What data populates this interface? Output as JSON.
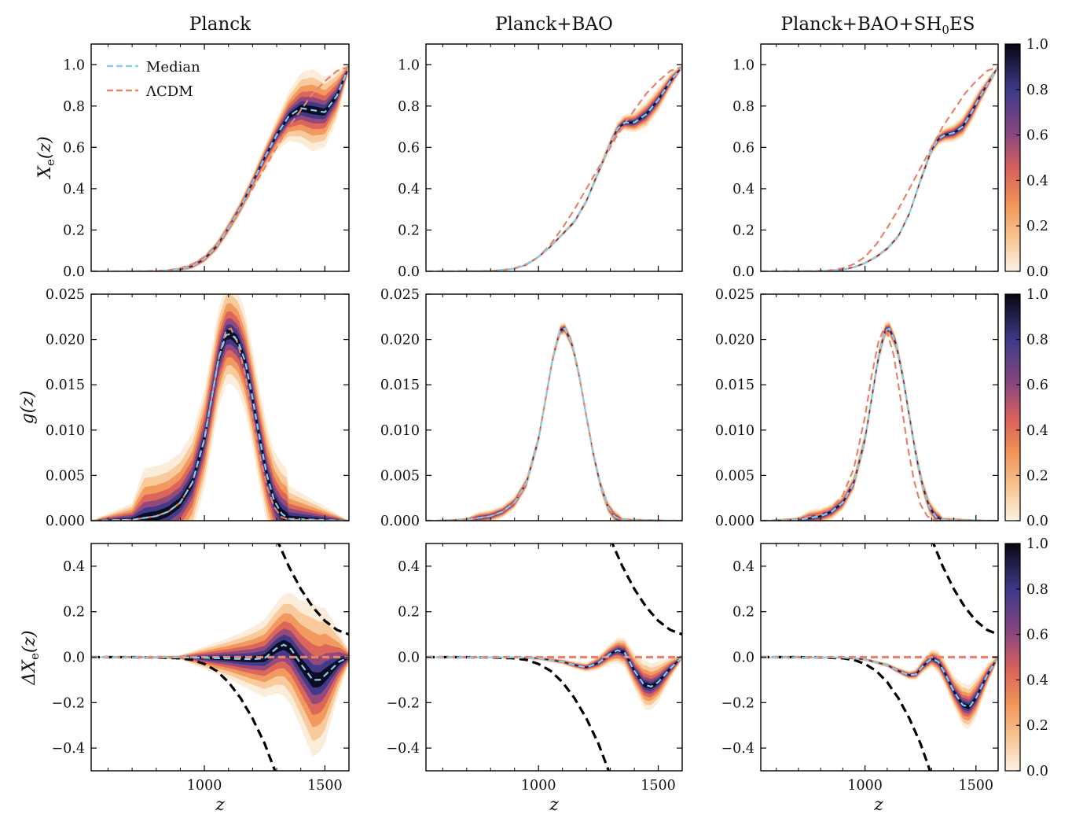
{
  "chart_data": {
    "type": "line",
    "description_type": "3x3 grid of posterior density bands with median and reference curves",
    "columns": [
      {
        "title": "Planck"
      },
      {
        "title": "Planck+BAO"
      },
      {
        "title": "Planck+BAO+SH",
        "title_sub": "0",
        "title_tail": "ES"
      }
    ],
    "rows": [
      {
        "ylabel": "X_e(z)",
        "ylabel_main": "X",
        "ylabel_sub": "e",
        "ylabel_tail": "(z)",
        "ylim": [
          0.0,
          1.1
        ],
        "yticks": [
          0.0,
          0.2,
          0.4,
          0.6,
          0.8,
          1.0
        ],
        "ytick_labels": [
          "0.0",
          "0.2",
          "0.4",
          "0.6",
          "0.8",
          "1.0"
        ]
      },
      {
        "ylabel": "g(z)",
        "ylabel_main": "g",
        "ylabel_sub": "",
        "ylabel_tail": "(z)",
        "ylim": [
          0.0,
          0.025
        ],
        "yticks": [
          0.0,
          0.005,
          0.01,
          0.015,
          0.02,
          0.025
        ],
        "ytick_labels": [
          "0.000",
          "0.005",
          "0.010",
          "0.015",
          "0.020",
          "0.025"
        ]
      },
      {
        "ylabel": "ΔX_e(z)",
        "ylabel_main": "ΔX",
        "ylabel_sub": "e",
        "ylabel_tail": "(z)",
        "ylim": [
          -0.5,
          0.5
        ],
        "yticks": [
          -0.4,
          -0.2,
          0.0,
          0.2,
          0.4
        ],
        "ytick_labels": [
          "−0.4",
          "−0.2",
          "0.0",
          "0.2",
          "0.4"
        ]
      }
    ],
    "x": {
      "label": "z",
      "xlim": [
        530,
        1600
      ],
      "major_ticks": [
        1000,
        1500
      ],
      "major_tick_labels": [
        "1000",
        "1500"
      ],
      "minor_ticks": [
        600,
        700,
        800,
        900,
        1100,
        1200,
        1300,
        1400
      ]
    },
    "legend": {
      "location": "top-left",
      "entries": [
        {
          "label": "Median",
          "color": "#87ceeb",
          "style": "dashed"
        },
        {
          "label": "ΛCDM",
          "color": "#e8826a",
          "style": "dashed"
        }
      ]
    },
    "colorbar": {
      "range": [
        0.0,
        1.0
      ],
      "ticks": [
        0.0,
        0.2,
        0.4,
        0.6,
        0.8,
        1.0
      ],
      "tick_labels": [
        "0.0",
        "0.2",
        "0.4",
        "0.6",
        "0.8",
        "1.0"
      ],
      "colors": [
        "#fbf1e3",
        "#f7a463",
        "#df6a55",
        "#8c467e",
        "#433d88",
        "#070712"
      ]
    },
    "colors": {
      "median": "#87ceeb",
      "lcdm": "#e8826a",
      "bounds": "#000000",
      "axis": "#000000"
    },
    "series": {
      "xe_lcdm": {
        "z": [
          530,
          700,
          800,
          850,
          900,
          950,
          1000,
          1050,
          1100,
          1150,
          1200,
          1250,
          1300,
          1350,
          1400,
          1450,
          1500,
          1550,
          1600
        ],
        "v": [
          0.0,
          0.0,
          0.002,
          0.006,
          0.015,
          0.035,
          0.07,
          0.13,
          0.21,
          0.3,
          0.4,
          0.5,
          0.6,
          0.7,
          0.78,
          0.86,
          0.92,
          0.97,
          0.99
        ]
      },
      "g_lcdm_a": {
        "z": [
          530,
          700,
          800,
          850,
          900,
          950,
          1000,
          1030,
          1060,
          1090,
          1110,
          1140,
          1170,
          1200,
          1230,
          1260,
          1290,
          1320,
          1350,
          1600
        ],
        "v": [
          0.0,
          0.0001,
          0.0005,
          0.001,
          0.002,
          0.0042,
          0.009,
          0.0135,
          0.018,
          0.021,
          0.0212,
          0.0195,
          0.016,
          0.0115,
          0.0072,
          0.0038,
          0.0015,
          0.0004,
          0.0001,
          0.0
        ]
      },
      "g_lcdm_c": {
        "z": [
          530,
          700,
          800,
          850,
          900,
          950,
          1000,
          1030,
          1060,
          1085,
          1100,
          1130,
          1160,
          1190,
          1220,
          1250,
          1280,
          1310,
          1600
        ],
        "v": [
          0.0,
          0.0002,
          0.0007,
          0.0014,
          0.0028,
          0.0058,
          0.0115,
          0.016,
          0.0197,
          0.0212,
          0.0208,
          0.0182,
          0.0135,
          0.0085,
          0.0045,
          0.0018,
          0.0005,
          0.0001,
          0.0
        ]
      },
      "bound_upper": {
        "z": [
          1300,
          1350,
          1400,
          1450,
          1500,
          1550,
          1600
        ],
        "v": [
          0.52,
          0.4,
          0.3,
          0.22,
          0.16,
          0.12,
          0.1
        ]
      },
      "bound_lower": {
        "z": [
          530,
          700,
          800,
          900,
          950,
          1000,
          1050,
          1100,
          1150,
          1200,
          1250,
          1300
        ],
        "v": [
          0.0,
          0.0,
          -0.001,
          -0.005,
          -0.012,
          -0.03,
          -0.06,
          -0.11,
          -0.18,
          -0.27,
          -0.38,
          -0.52
        ]
      },
      "planck": {
        "xe_median": {
          "z": [
            530,
            800,
            900,
            950,
            1000,
            1050,
            1100,
            1150,
            1200,
            1250,
            1300,
            1350,
            1400,
            1450,
            1500,
            1550,
            1600
          ],
          "v": [
            0.0,
            0.0,
            0.01,
            0.025,
            0.06,
            0.12,
            0.21,
            0.31,
            0.43,
            0.55,
            0.66,
            0.75,
            0.79,
            0.78,
            0.77,
            0.85,
            0.99
          ]
        },
        "xe_spread": {
          "z": [
            530,
            800,
            900,
            1000,
            1100,
            1200,
            1250,
            1300,
            1350,
            1400,
            1450,
            1500,
            1550,
            1600
          ],
          "v": [
            0.0,
            0.003,
            0.01,
            0.02,
            0.03,
            0.04,
            0.06,
            0.08,
            0.12,
            0.17,
            0.2,
            0.17,
            0.12,
            0.02
          ]
        },
        "g_median": {
          "z": [
            530,
            700,
            800,
            850,
            900,
            950,
            1000,
            1030,
            1060,
            1090,
            1110,
            1140,
            1170,
            1200,
            1230,
            1260,
            1290,
            1320,
            1350,
            1600
          ],
          "v": [
            0.0,
            0.0001,
            0.0005,
            0.001,
            0.002,
            0.0042,
            0.009,
            0.0135,
            0.018,
            0.0205,
            0.0206,
            0.0198,
            0.0175,
            0.0135,
            0.009,
            0.005,
            0.0022,
            0.0008,
            0.0002,
            0.0
          ]
        },
        "g_spread": 0.0055,
        "dx_median": {
          "z": [
            530,
            900,
            1000,
            1100,
            1150,
            1200,
            1250,
            1300,
            1330,
            1360,
            1400,
            1450,
            1480,
            1520,
            1560,
            1600
          ],
          "v": [
            0.0,
            -0.001,
            -0.003,
            -0.006,
            -0.008,
            -0.009,
            -0.005,
            0.04,
            0.055,
            0.035,
            -0.03,
            -0.1,
            -0.1,
            -0.06,
            -0.02,
            0.0
          ]
        },
        "dx_spread": {
          "z": [
            530,
            900,
            1000,
            1100,
            1200,
            1300,
            1400,
            1450,
            1500,
            1550,
            1600
          ],
          "v": [
            0.0,
            0.01,
            0.05,
            0.09,
            0.14,
            0.2,
            0.28,
            0.34,
            0.3,
            0.16,
            0.03
          ]
        }
      },
      "bao": {
        "xe_median": {
          "z": [
            530,
            800,
            900,
            950,
            1000,
            1050,
            1100,
            1150,
            1200,
            1250,
            1300,
            1330,
            1360,
            1400,
            1450,
            1500,
            1550,
            1600
          ],
          "v": [
            0.0,
            0.002,
            0.013,
            0.032,
            0.07,
            0.12,
            0.18,
            0.24,
            0.34,
            0.48,
            0.62,
            0.69,
            0.72,
            0.72,
            0.76,
            0.83,
            0.92,
            0.99
          ]
        },
        "xe_spread": {
          "z": [
            530,
            900,
            1100,
            1200,
            1300,
            1400,
            1450,
            1500,
            1550,
            1600
          ],
          "v": [
            0.0,
            0.005,
            0.01,
            0.015,
            0.025,
            0.05,
            0.065,
            0.06,
            0.04,
            0.01
          ]
        },
        "g_median": "g_lcdm_a",
        "g_spread": 0.0007,
        "dx_median": {
          "z": [
            530,
            900,
            1000,
            1100,
            1150,
            1200,
            1250,
            1300,
            1330,
            1360,
            1400,
            1440,
            1470,
            1500,
            1550,
            1600
          ],
          "v": [
            0.0,
            -0.001,
            -0.005,
            -0.02,
            -0.035,
            -0.045,
            -0.025,
            0.015,
            0.03,
            0.02,
            -0.06,
            -0.12,
            -0.13,
            -0.11,
            -0.05,
            0.0
          ]
        },
        "dx_spread": {
          "z": [
            530,
            900,
            1100,
            1200,
            1300,
            1400,
            1450,
            1500,
            1550,
            1600
          ],
          "v": [
            0.0,
            0.005,
            0.012,
            0.02,
            0.045,
            0.08,
            0.11,
            0.09,
            0.05,
            0.01
          ]
        }
      },
      "shoes": {
        "xe_median": {
          "z": [
            530,
            800,
            900,
            950,
            1000,
            1050,
            1100,
            1150,
            1200,
            1250,
            1300,
            1330,
            1360,
            1400,
            1440,
            1480,
            1520,
            1560,
            1600
          ],
          "v": [
            0.0,
            0.001,
            0.008,
            0.02,
            0.04,
            0.07,
            0.11,
            0.17,
            0.28,
            0.44,
            0.59,
            0.64,
            0.66,
            0.67,
            0.7,
            0.77,
            0.85,
            0.92,
            0.99
          ]
        },
        "xe_spread": {
          "z": [
            530,
            900,
            1100,
            1200,
            1300,
            1400,
            1450,
            1500,
            1550,
            1600
          ],
          "v": [
            0.0,
            0.005,
            0.01,
            0.015,
            0.025,
            0.045,
            0.055,
            0.05,
            0.03,
            0.01
          ]
        },
        "g_median": "g_lcdm_a",
        "g_spread": 0.0009,
        "dx_median": {
          "z": [
            530,
            900,
            1000,
            1100,
            1150,
            1200,
            1230,
            1260,
            1300,
            1330,
            1360,
            1400,
            1440,
            1470,
            1500,
            1550,
            1600
          ],
          "v": [
            0.0,
            -0.002,
            -0.01,
            -0.035,
            -0.06,
            -0.08,
            -0.075,
            -0.04,
            -0.005,
            -0.02,
            -0.07,
            -0.15,
            -0.21,
            -0.22,
            -0.18,
            -0.08,
            0.0
          ]
        },
        "dx_spread": {
          "z": [
            530,
            900,
            1100,
            1200,
            1300,
            1400,
            1450,
            1500,
            1550,
            1600
          ],
          "v": [
            0.0,
            0.005,
            0.01,
            0.02,
            0.04,
            0.07,
            0.1,
            0.09,
            0.05,
            0.01
          ]
        }
      }
    }
  }
}
